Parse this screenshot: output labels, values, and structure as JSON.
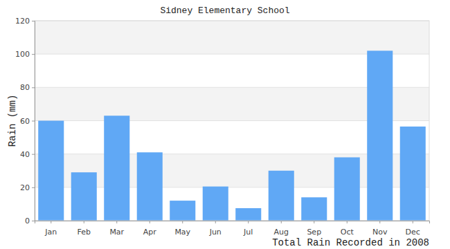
{
  "chart_data": {
    "type": "bar",
    "title": "Sidney Elementary School",
    "x_label": "Total Rain Recorded in 2008",
    "y_label": "Rain (mm)",
    "categories": [
      "Jan",
      "Feb",
      "Mar",
      "Apr",
      "May",
      "Jun",
      "Jul",
      "Aug",
      "Sep",
      "Oct",
      "Nov",
      "Dec"
    ],
    "values": [
      60,
      29,
      63,
      41,
      12,
      20.5,
      7.5,
      30,
      14,
      38,
      102,
      56.5
    ],
    "color": "#60a8f5",
    "ylim": [
      0,
      120
    ],
    "yticks": [
      0,
      20,
      40,
      60,
      80,
      100,
      120
    ],
    "grid": true
  }
}
